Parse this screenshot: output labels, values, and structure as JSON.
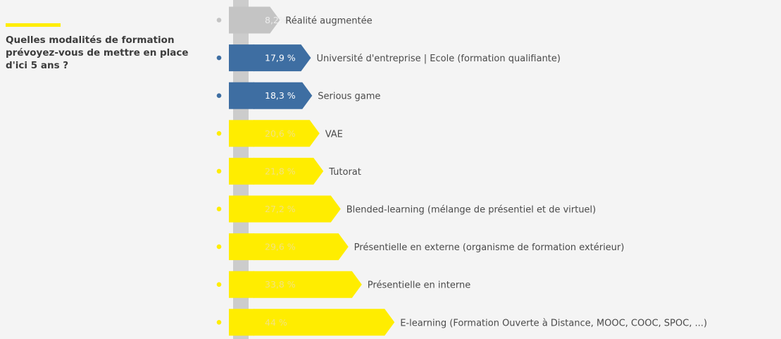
{
  "question": "Quelles modalités de formation prévoyez-vous de mettre en place d'ici 5 ans ?",
  "colors": {
    "grey": "#c4c4c4",
    "blue": "#3e6ea2",
    "yellow": "#ffed00",
    "stem": "#cccccc"
  },
  "chart_data": {
    "type": "bar",
    "orientation": "horizontal",
    "unit": "%",
    "grid": false,
    "items": [
      {
        "category": "Réalité augmentée",
        "value": 8.2,
        "label": "8,2%",
        "color": "grey"
      },
      {
        "category": "Université d'entreprise | Ecole (formation qualifiante)",
        "value": 17.9,
        "label": "17,9 %",
        "color": "blue"
      },
      {
        "category": "Serious game",
        "value": 18.3,
        "label": "18,3 %",
        "color": "blue"
      },
      {
        "category": "VAE",
        "value": 20.6,
        "label": "20,6 %",
        "color": "yellow"
      },
      {
        "category": "Tutorat",
        "value": 21.8,
        "label": "21,8 %",
        "color": "yellow"
      },
      {
        "category": "Blended-learning (mélange de présentiel et de virtuel)",
        "value": 27.2,
        "label": "27,2 %",
        "color": "yellow"
      },
      {
        "category": "Présentielle en externe (organisme de formation extérieur)",
        "value": 29.6,
        "label": "29,6 %",
        "color": "yellow"
      },
      {
        "category": "Présentielle en interne",
        "value": 33.8,
        "label": "33,8 %",
        "color": "yellow"
      },
      {
        "category": "E-learning (Formation Ouverte à Distance, MOOC, COOC, SPOC, ...)",
        "value": 44,
        "label": "44 %",
        "color": "yellow"
      }
    ]
  }
}
